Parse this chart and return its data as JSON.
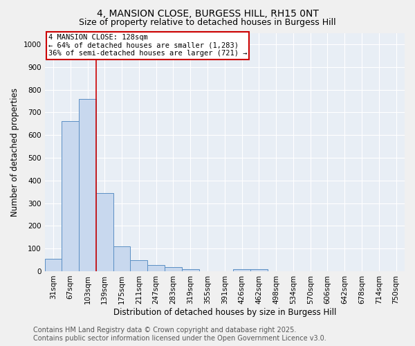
{
  "title": "4, MANSION CLOSE, BURGESS HILL, RH15 0NT",
  "subtitle": "Size of property relative to detached houses in Burgess Hill",
  "xlabel": "Distribution of detached houses by size in Burgess Hill",
  "ylabel": "Number of detached properties",
  "bar_labels": [
    "31sqm",
    "67sqm",
    "103sqm",
    "139sqm",
    "175sqm",
    "211sqm",
    "247sqm",
    "283sqm",
    "319sqm",
    "355sqm",
    "391sqm",
    "426sqm",
    "462sqm",
    "498sqm",
    "534sqm",
    "570sqm",
    "606sqm",
    "642sqm",
    "678sqm",
    "714sqm",
    "750sqm"
  ],
  "bar_values": [
    55,
    660,
    760,
    345,
    110,
    50,
    28,
    17,
    10,
    0,
    0,
    8,
    8,
    0,
    0,
    0,
    0,
    0,
    0,
    0,
    0
  ],
  "bar_color": "#c8d8ee",
  "bar_edge_color": "#5b8fc4",
  "vline_x": 2.5,
  "vline_color": "#cc0000",
  "annotation_text": "4 MANSION CLOSE: 128sqm\n← 64% of detached houses are smaller (1,283)\n36% of semi-detached houses are larger (721) →",
  "annotation_box_color": "white",
  "annotation_box_edge": "#cc0000",
  "footer_line1": "Contains HM Land Registry data © Crown copyright and database right 2025.",
  "footer_line2": "Contains public sector information licensed under the Open Government Licence v3.0.",
  "ylim": [
    0,
    1050
  ],
  "yticks": [
    0,
    100,
    200,
    300,
    400,
    500,
    600,
    700,
    800,
    900,
    1000
  ],
  "plot_bg_color": "#e8eef5",
  "fig_bg_color": "#f0f0f0",
  "grid_color": "#ffffff",
  "title_fontsize": 10,
  "subtitle_fontsize": 9,
  "axis_label_fontsize": 8.5,
  "tick_fontsize": 7.5,
  "annotation_fontsize": 7.5,
  "footer_fontsize": 7
}
